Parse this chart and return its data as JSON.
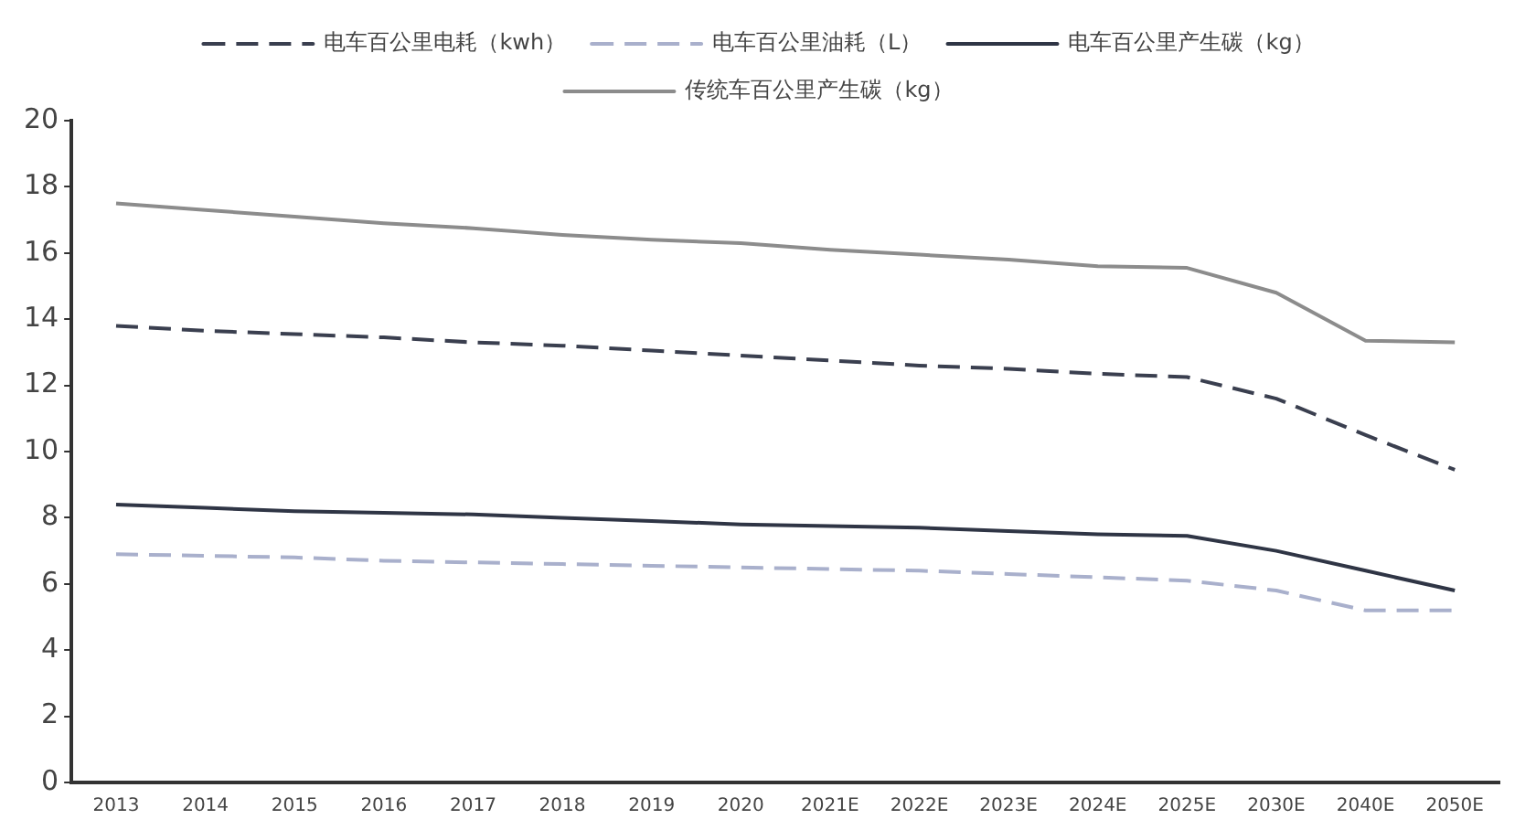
{
  "chart_data": {
    "type": "line",
    "categories": [
      "2013",
      "2014",
      "2015",
      "2016",
      "2017",
      "2018",
      "2019",
      "2020",
      "2021E",
      "2022E",
      "2023E",
      "2024E",
      "2025E",
      "2030E",
      "2040E",
      "2050E"
    ],
    "ylim": [
      0,
      20
    ],
    "yticks": [
      0,
      2,
      4,
      6,
      8,
      10,
      12,
      14,
      16,
      18,
      20
    ],
    "grid": false,
    "legend": "top",
    "marker": "none",
    "series": [
      {
        "name": "电车百公里电耗（kwh）",
        "color": "#3a3f4f",
        "line_style": "dashed",
        "values": [
          13.8,
          13.65,
          13.55,
          13.45,
          13.3,
          13.2,
          13.05,
          12.9,
          12.75,
          12.6,
          12.5,
          12.35,
          12.25,
          11.6,
          10.5,
          9.45
        ]
      },
      {
        "name": "电车百公里油耗（L）",
        "color": "#a9b0cc",
        "line_style": "dashed",
        "values": [
          6.9,
          6.85,
          6.8,
          6.7,
          6.65,
          6.6,
          6.55,
          6.5,
          6.45,
          6.4,
          6.3,
          6.2,
          6.1,
          5.8,
          5.2,
          5.2
        ]
      },
      {
        "name": "电车百公里产生碳（kg）",
        "color": "#2f3545",
        "line_style": "solid",
        "values": [
          8.4,
          8.3,
          8.2,
          8.15,
          8.1,
          8.0,
          7.9,
          7.8,
          7.75,
          7.7,
          7.6,
          7.5,
          7.45,
          7.0,
          6.4,
          5.8
        ]
      },
      {
        "name": "传统车百公里产生碳（kg）",
        "color": "#8c8c8c",
        "line_style": "solid",
        "values": [
          17.5,
          17.3,
          17.1,
          16.9,
          16.75,
          16.55,
          16.4,
          16.3,
          16.1,
          15.95,
          15.8,
          15.6,
          15.55,
          14.8,
          13.35,
          13.3
        ]
      }
    ]
  }
}
